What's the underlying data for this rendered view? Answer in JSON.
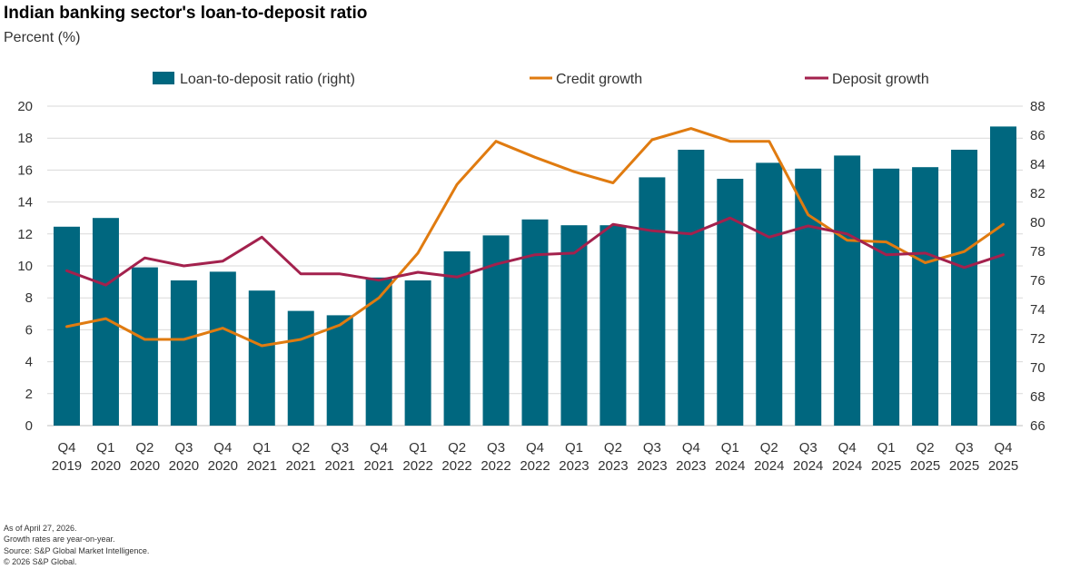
{
  "header": {
    "title": "Indian banking sector's loan-to-deposit ratio",
    "subtitle": "Percent (%)"
  },
  "footnotes": [
    "As of April 27, 2026.",
    "Growth rates are year-on-year.",
    "Source: S&P Global Market Intelligence.",
    "© 2026 S&P Global."
  ],
  "colors": {
    "bar": "#00677f",
    "credit": "#e07b10",
    "deposit": "#a3214d",
    "grid": "#d9d9d9"
  },
  "chart_data": {
    "type": "bar",
    "categories": [
      [
        "Q4",
        "2019"
      ],
      [
        "Q1",
        "2020"
      ],
      [
        "Q2",
        "2020"
      ],
      [
        "Q3",
        "2020"
      ],
      [
        "Q4",
        "2020"
      ],
      [
        "Q1",
        "2021"
      ],
      [
        "Q2",
        "2021"
      ],
      [
        "Q3",
        "2021"
      ],
      [
        "Q4",
        "2021"
      ],
      [
        "Q1",
        "2022"
      ],
      [
        "Q2",
        "2022"
      ],
      [
        "Q3",
        "2022"
      ],
      [
        "Q4",
        "2022"
      ],
      [
        "Q1",
        "2023"
      ],
      [
        "Q2",
        "2023"
      ],
      [
        "Q3",
        "2023"
      ],
      [
        "Q4",
        "2023"
      ],
      [
        "Q1",
        "2024"
      ],
      [
        "Q2",
        "2024"
      ],
      [
        "Q3",
        "2024"
      ],
      [
        "Q4",
        "2024"
      ],
      [
        "Q1",
        "2025"
      ],
      [
        "Q2",
        "2025"
      ],
      [
        "Q3",
        "2025"
      ],
      [
        "Q4",
        "2025"
      ]
    ],
    "series": [
      {
        "name": "Loan-to-deposit ratio (right)",
        "type": "bar",
        "axis": "right",
        "values": [
          79.7,
          80.3,
          76.9,
          76.0,
          76.6,
          75.3,
          73.9,
          73.6,
          76.2,
          76.0,
          78.0,
          79.1,
          80.2,
          79.8,
          79.8,
          83.1,
          85.0,
          83.0,
          84.1,
          83.7,
          84.6,
          83.7,
          83.8,
          85.0,
          86.6
        ]
      },
      {
        "name": "Credit growth",
        "type": "line",
        "axis": "left",
        "values": [
          6.2,
          6.7,
          5.4,
          5.4,
          6.1,
          5.0,
          5.4,
          6.3,
          8.0,
          10.8,
          15.1,
          17.8,
          16.8,
          15.9,
          15.2,
          17.9,
          18.6,
          17.8,
          17.8,
          13.2,
          11.6,
          11.5,
          10.2,
          10.9,
          12.6
        ]
      },
      {
        "name": "Deposit growth",
        "type": "line",
        "axis": "left",
        "values": [
          9.7,
          8.8,
          10.5,
          10.0,
          10.3,
          11.8,
          9.5,
          9.5,
          9.1,
          9.6,
          9.3,
          10.1,
          10.7,
          10.8,
          12.6,
          12.2,
          12.0,
          13.0,
          11.8,
          12.5,
          12.0,
          10.7,
          10.8,
          9.9,
          10.7
        ]
      }
    ],
    "left_axis": {
      "ylim": [
        0,
        20
      ],
      "ticks": [
        "0",
        "2",
        "4",
        "6",
        "8",
        "10",
        "12",
        "14",
        "16",
        "18",
        "20"
      ]
    },
    "right_axis": {
      "ylim": [
        66,
        88
      ],
      "ticks": [
        "66",
        "68",
        "70",
        "72",
        "74",
        "76",
        "78",
        "80",
        "82",
        "84",
        "86",
        "88"
      ]
    },
    "legend_position": "top",
    "grid": true
  }
}
